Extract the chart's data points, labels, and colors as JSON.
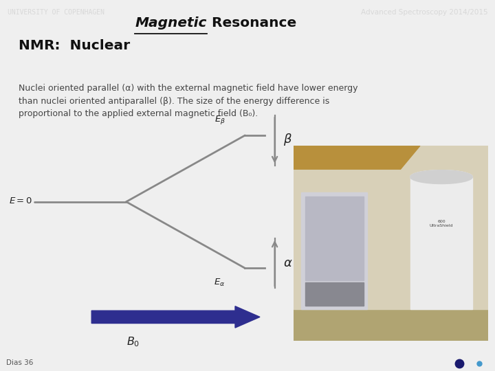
{
  "header_bg": "#6b6b6b",
  "header_text_left": "UNIVERSITY OF COPENHAGEN",
  "header_text_right": "Advanced Spectroscopy 2014/2015",
  "header_text_color": "#d8d8d8",
  "bg_color": "#efefef",
  "title_color": "#111111",
  "body_text_color": "#444444",
  "diagram_line_color": "#888888",
  "b0_arrow_color": "#2e2e8f",
  "footer_text": "Dias 36",
  "footer_color": "#555555",
  "dot_color_dark": "#1a1a6e",
  "dot_color_light": "#4499cc",
  "body_text_line1": "Nuclei oriented parallel (α) with the external magnetic field have lower energy",
  "body_text_line2": "than nuclei oriented antiparallel (β). The size of the energy difference is",
  "body_text_line3": "proportional to the applied external magnetic field (B₀)."
}
